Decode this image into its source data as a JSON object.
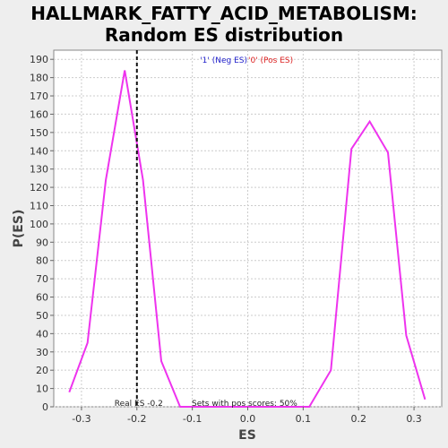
{
  "chart_data": {
    "type": "line",
    "title_line1": "HALLMARK_FATTY_ACID_METABOLISM:",
    "title_line2": "Random ES distribution",
    "xlabel": "ES",
    "ylabel": "P(ES)",
    "xlim": [
      -0.35,
      0.35
    ],
    "ylim": [
      0,
      195
    ],
    "xticks": [
      -0.3,
      -0.2,
      -0.1,
      0.0,
      0.1,
      0.2,
      0.3
    ],
    "xtick_labels": [
      "-0.3",
      "-0.2",
      "-0.1",
      "0.0",
      "0.1",
      "0.2",
      "0.3"
    ],
    "yticks": [
      0,
      10,
      20,
      30,
      40,
      50,
      60,
      70,
      80,
      90,
      100,
      110,
      120,
      130,
      140,
      150,
      160,
      170,
      180,
      190
    ],
    "grid": true,
    "legend": {
      "placement": "top-center",
      "entries": [
        {
          "label": "'1' (Neg ES)",
          "color": "#2222cc"
        },
        {
          "label": "'0' (Pos ES)",
          "color": "#dd2222"
        }
      ]
    },
    "series": [
      {
        "color": "#ee33ee",
        "x": [
          -0.322,
          -0.289,
          -0.256,
          -0.222,
          -0.189,
          -0.156,
          -0.122,
          -0.089,
          -0.056,
          -0.022,
          0.011,
          0.044,
          0.078,
          0.111,
          0.15,
          0.187,
          0.22,
          0.253,
          0.286,
          0.32
        ],
        "y": [
          8,
          35,
          124,
          184,
          124,
          25,
          0,
          0,
          0,
          0,
          0,
          0,
          0,
          0,
          20,
          141,
          156,
          139,
          39,
          4
        ]
      }
    ],
    "real_es": {
      "x": -0.2,
      "label": "Real ES -0.2"
    },
    "annotation": "Sets with pos scores: 50%",
    "colors": {
      "line": "#ee33ee",
      "plot_bg": "#ffffff",
      "page_bg": "#eeeeee",
      "grid": "#cccccc"
    }
  }
}
